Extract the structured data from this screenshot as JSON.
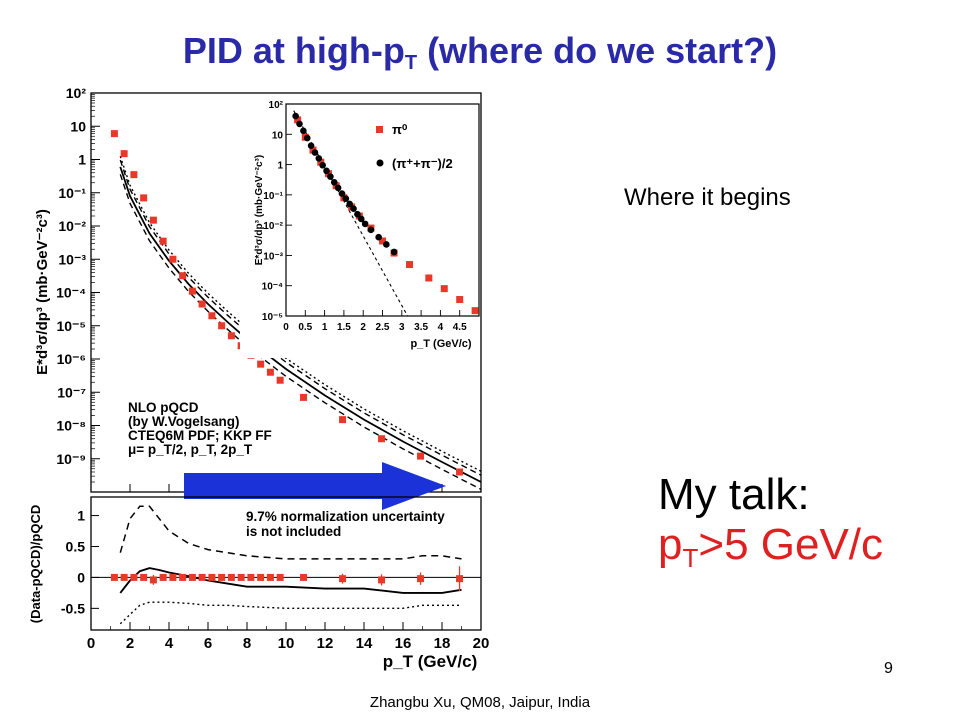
{
  "slide": {
    "title_main": "PID at high-p",
    "title_sub": "T",
    "title_rest": " (where do we start?)",
    "note": "Where it begins",
    "talk_line1": "My talk:",
    "talk_line2_main": "p",
    "talk_line2_sub": "T",
    "talk_line2_rest": ">5 GeV/c",
    "page_number": "9",
    "footer": "Zhangbu Xu, QM08, Jaipur, India",
    "colors": {
      "title": "#2a2aa8",
      "highlight": "#e02020",
      "arrow": "#1a32d8",
      "marker_red": "#e8382a"
    }
  },
  "chart_data": [
    {
      "type": "scatter",
      "panel": "main spectrum",
      "yscale": "log",
      "xlim": [
        0,
        20
      ],
      "ylim": [
        1e-10,
        100
      ],
      "ylabel": "E*d³σ/dp³ (mb·GeV⁻²c³)",
      "xlabel": "",
      "ytick_labels": [
        "10²",
        "10",
        "1",
        "10⁻¹",
        "10⁻²",
        "10⁻³",
        "10⁻⁴",
        "10⁻⁵",
        "10⁻⁶",
        "10⁻⁷",
        "10⁻⁸",
        "10⁻⁹"
      ],
      "xtick_labels": [
        "0",
        "2",
        "4",
        "6",
        "8",
        "10",
        "12",
        "14",
        "16",
        "18",
        "20"
      ],
      "annotation": [
        "NLO pQCD",
        "(by W.Vogelsang)",
        "CTEQ6M PDF; KKP FF",
        "μ= p_T/2, p_T, 2p_T"
      ],
      "series": [
        {
          "marker": "square",
          "color": "#e8382a",
          "x": [
            1.2,
            1.7,
            2.2,
            2.7,
            3.2,
            3.7,
            4.2,
            4.7,
            5.2,
            5.7,
            6.2,
            6.7,
            7.2,
            7.7,
            8.2,
            8.7,
            9.2,
            9.7,
            10.9,
            12.9,
            14.9,
            16.9,
            18.9
          ],
          "y": [
            6,
            1.5,
            0.35,
            0.07,
            0.015,
            0.0035,
            0.001,
            0.00032,
            0.00011,
            4.5e-05,
            2e-05,
            1e-05,
            5e-06,
            2.5e-06,
            1.3e-06,
            7e-07,
            4e-07,
            2.3e-07,
            7e-08,
            1.5e-08,
            4e-09,
            1.2e-09,
            4e-10
          ]
        }
      ],
      "curves": {
        "x": [
          1.5,
          2,
          3,
          4,
          5,
          6,
          7,
          8,
          9,
          10,
          12,
          14,
          16,
          18,
          20
        ],
        "central": [
          0.6,
          0.08,
          0.006,
          0.0009,
          0.00018,
          4.5e-05,
          1.3e-05,
          4e-06,
          1.4e-06,
          5e-07,
          8e-08,
          1.5e-08,
          3.3e-09,
          8e-10,
          2e-10
        ],
        "upper_factor": 1.6,
        "lower_factor": 0.6,
        "dotted_factor": 2.1
      }
    },
    {
      "type": "scatter",
      "panel": "inset low-pT",
      "yscale": "log",
      "xlim": [
        0,
        5
      ],
      "ylim": [
        1e-05,
        100
      ],
      "xlabel": "p_T (GeV/c)",
      "ylabel": "E*d³σ/dp³ (mb·GeV⁻²c³)",
      "ytick_labels": [
        "10²",
        "10",
        "1",
        "10⁻¹",
        "10⁻²",
        "10⁻³",
        "10⁻⁴",
        "10⁻⁵"
      ],
      "xtick_labels": [
        "0",
        "0.5",
        "1",
        "1.5",
        "2",
        "2.5",
        "3",
        "3.5",
        "4",
        "4.5"
      ],
      "legend": "top-right",
      "series": [
        {
          "name": "π⁰",
          "marker": "square",
          "color": "#e8382a",
          "x": [
            0.3,
            0.5,
            0.7,
            0.9,
            1.1,
            1.3,
            1.5,
            1.7,
            1.9,
            2.2,
            2.5,
            2.8,
            3.2,
            3.7,
            4.1,
            4.5,
            4.9
          ],
          "y": [
            30,
            8,
            3,
            1.2,
            0.5,
            0.2,
            0.08,
            0.04,
            0.02,
            0.008,
            0.003,
            0.0012,
            0.0005,
            0.00018,
            8e-05,
            3.5e-05,
            1.5e-05
          ]
        },
        {
          "name": "(π⁺+π⁻)/2",
          "marker": "circle",
          "color": "#000000",
          "x": [
            0.25,
            0.35,
            0.45,
            0.55,
            0.65,
            0.75,
            0.85,
            0.95,
            1.05,
            1.15,
            1.25,
            1.35,
            1.45,
            1.55,
            1.65,
            1.75,
            1.85,
            1.95,
            2.05,
            2.2,
            2.4,
            2.6,
            2.8
          ],
          "y": [
            40,
            22,
            13,
            7.5,
            4.2,
            2.5,
            1.6,
            0.95,
            0.62,
            0.4,
            0.26,
            0.17,
            0.11,
            0.075,
            0.05,
            0.035,
            0.023,
            0.016,
            0.011,
            0.007,
            0.004,
            0.0023,
            0.0013
          ]
        }
      ],
      "curve": {
        "x": [
          0.2,
          3.15
        ],
        "y": [
          60,
          1e-05
        ],
        "style": "dashed"
      }
    },
    {
      "type": "scatter",
      "panel": "ratio",
      "xlim": [
        0,
        20
      ],
      "ylim": [
        -0.85,
        1.3
      ],
      "ylabel": "(Data-pQCD)/pQCD",
      "xlabel": "p_T (GeV/c)",
      "ytick_labels": [
        "-0.5",
        "0",
        "0.5",
        "1"
      ],
      "xtick_labels": [
        "0",
        "2",
        "4",
        "6",
        "8",
        "10",
        "12",
        "14",
        "16",
        "18",
        "20"
      ],
      "annotation": [
        "9.7% normalization uncertainty",
        "is not included"
      ],
      "series": [
        {
          "marker": "square",
          "color": "#e8382a",
          "x": [
            1.2,
            1.7,
            2.2,
            2.7,
            3.2,
            3.7,
            4.2,
            4.7,
            5.2,
            5.7,
            6.2,
            6.7,
            7.2,
            7.7,
            8.2,
            8.7,
            9.2,
            9.7,
            10.9,
            12.9,
            14.9,
            16.9,
            18.9
          ],
          "y": [
            0,
            0,
            0,
            0,
            -0.04,
            0,
            0,
            0,
            0,
            0,
            0,
            0,
            0,
            0,
            0,
            0,
            0,
            0,
            0,
            -0.02,
            -0.04,
            -0.02,
            -0.02
          ],
          "err": [
            0.02,
            0.02,
            0.02,
            0.03,
            0.08,
            0.03,
            0.03,
            0.03,
            0.03,
            0.03,
            0.03,
            0.03,
            0.03,
            0.03,
            0.03,
            0.03,
            0.03,
            0.03,
            0.05,
            0.08,
            0.09,
            0.1,
            0.2
          ]
        }
      ],
      "curves": {
        "x": [
          1.5,
          2,
          2.5,
          3,
          3.5,
          4,
          5,
          6,
          7,
          8,
          10,
          12,
          14,
          16,
          17,
          18,
          19
        ],
        "dashed_upper": [
          0.4,
          0.95,
          1.15,
          1.15,
          0.95,
          0.75,
          0.55,
          0.45,
          0.4,
          0.35,
          0.3,
          0.3,
          0.3,
          0.3,
          0.35,
          0.35,
          0.3
        ],
        "solid_central": [
          -0.25,
          -0.05,
          0.1,
          0.15,
          0.12,
          0.08,
          0.02,
          -0.05,
          -0.1,
          -0.15,
          -0.15,
          -0.18,
          -0.18,
          -0.25,
          -0.25,
          -0.25,
          -0.2
        ],
        "dotted_lower": [
          -0.75,
          -0.6,
          -0.45,
          -0.4,
          -0.4,
          -0.4,
          -0.42,
          -0.45,
          -0.45,
          -0.47,
          -0.5,
          -0.5,
          -0.5,
          -0.5,
          -0.45,
          -0.45,
          -0.45
        ]
      }
    }
  ]
}
